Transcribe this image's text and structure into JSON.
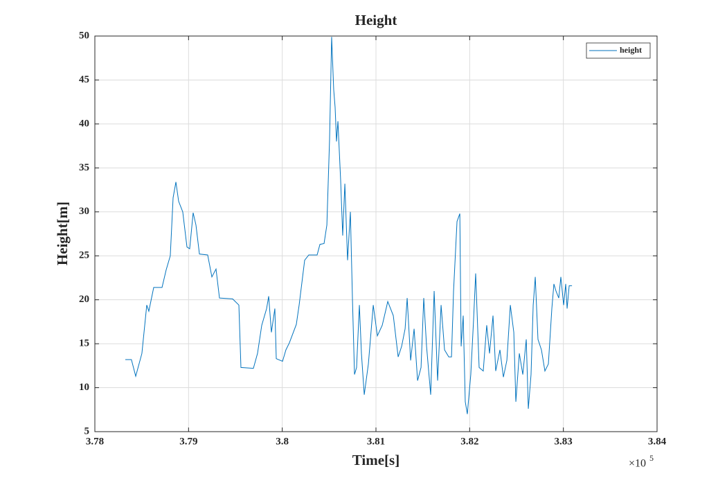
{
  "chart_data": {
    "type": "line",
    "title": "Height",
    "x_label": "Time[s]",
    "y_label": "Height[m]",
    "x_multiplier": "×10",
    "x_multiplier_exp": "5",
    "x": [
      378325,
      378390,
      378436,
      378502,
      378554,
      378576,
      378628,
      378717,
      378761,
      378805,
      378835,
      378865,
      378894,
      378938,
      378983,
      379012,
      379049,
      379079,
      379116,
      379204,
      379249,
      379293,
      379330,
      379470,
      379537,
      379559,
      379692,
      379736,
      379781,
      379833,
      379855,
      379884,
      379921,
      379936,
      380003,
      380039,
      380076,
      380150,
      380180,
      380239,
      380283,
      380372,
      380402,
      380446,
      380476,
      380505,
      380527,
      380549,
      380564,
      380579,
      380594,
      380623,
      380645,
      380668,
      380697,
      380727,
      380749,
      380771,
      380793,
      380823,
      380845,
      380875,
      380919,
      380971,
      381015,
      381067,
      381126,
      381185,
      381237,
      381274,
      381311,
      381333,
      381370,
      381407,
      381444,
      381481,
      381510,
      381540,
      381584,
      381621,
      381658,
      381695,
      381732,
      381777,
      381806,
      381828,
      381865,
      381895,
      381909,
      381931,
      381953,
      381975,
      382012,
      382042,
      382064,
      382101,
      382145,
      382182,
      382212,
      382249,
      382278,
      382323,
      382360,
      382397,
      382434,
      382471,
      382493,
      382530,
      382567,
      382604,
      382626,
      382655,
      382678,
      382700,
      382729,
      382766,
      382803,
      382840,
      382877,
      382899,
      382921,
      382951,
      382973,
      383003,
      383025,
      383040,
      383062,
      383092
    ],
    "series": [
      {
        "name": "height",
        "color": "#0072bd",
        "values": [
          13.2,
          13.2,
          11.3,
          13.9,
          19.4,
          18.7,
          21.4,
          21.4,
          23.4,
          25,
          31.6,
          33.4,
          31.2,
          30,
          26,
          25.8,
          29.9,
          28.5,
          25.2,
          25.1,
          22.6,
          23.5,
          20.2,
          20.1,
          19.4,
          12.3,
          12.2,
          13.9,
          17.1,
          19,
          20.4,
          16.3,
          19,
          13.3,
          13,
          14.3,
          15.1,
          17.2,
          19.4,
          24.5,
          25.1,
          25.1,
          26.3,
          26.4,
          28.5,
          38.3,
          49.9,
          43.9,
          41.9,
          38,
          40.3,
          33.6,
          27.3,
          33.2,
          24.5,
          30,
          20.1,
          11.5,
          12.3,
          19.4,
          13.9,
          9.2,
          12.7,
          19.4,
          15.9,
          17.1,
          19.8,
          18.2,
          13.5,
          14.7,
          16.7,
          20.2,
          13.1,
          16.7,
          10.8,
          12.3,
          20.2,
          14.7,
          9.2,
          21,
          10.8,
          19.4,
          14.3,
          13.5,
          13.5,
          21,
          28.9,
          29.8,
          14.7,
          18.2,
          8.4,
          7,
          11.5,
          17.8,
          23,
          12.3,
          11.9,
          17.1,
          13.9,
          18.2,
          11.9,
          14.3,
          11.2,
          13.1,
          19.4,
          16.3,
          8.4,
          13.9,
          11.5,
          15.5,
          7.6,
          11.5,
          19.4,
          22.6,
          15.5,
          14.3,
          11.9,
          12.7,
          19,
          21.8,
          21,
          20.2,
          22.6,
          19.4,
          21.8,
          19,
          21.6,
          21.6
        ]
      }
    ],
    "xlim": [
      378000,
      384000
    ],
    "xticks": [
      {
        "value": 378000,
        "label": "3.78"
      },
      {
        "value": 379000,
        "label": "3.79"
      },
      {
        "value": 380000,
        "label": "3.8"
      },
      {
        "value": 381000,
        "label": "3.81"
      },
      {
        "value": 382000,
        "label": "3.82"
      },
      {
        "value": 383000,
        "label": "3.83"
      },
      {
        "value": 384000,
        "label": "3.84"
      }
    ],
    "ylim": [
      5,
      50
    ],
    "yticks": [
      5,
      10,
      15,
      20,
      25,
      30,
      35,
      40,
      45,
      50
    ],
    "grid": true,
    "legend": "upper right"
  }
}
